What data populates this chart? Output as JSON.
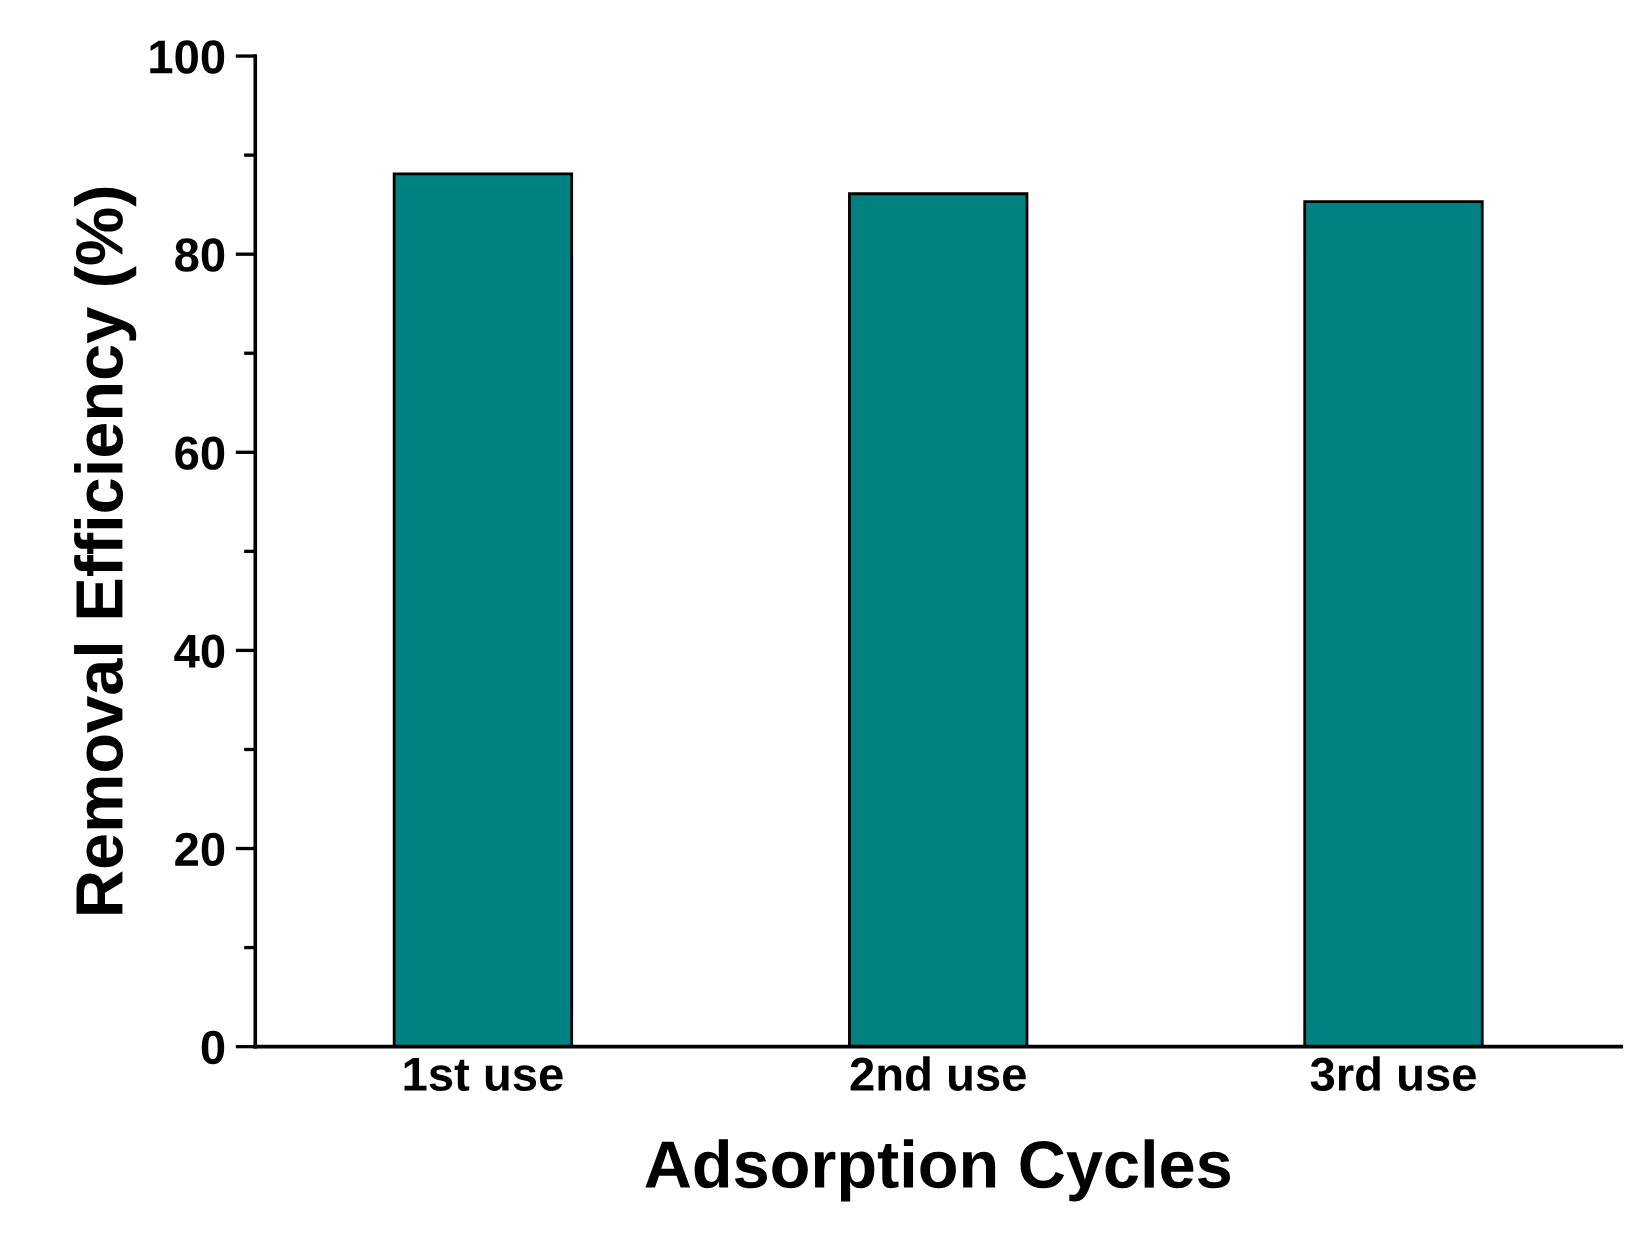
{
  "chart_data": {
    "type": "bar",
    "xlabel": "Adsorption Cycles",
    "ylabel": "Removal Efficiency (%)",
    "categories": [
      "1st use",
      "2nd use",
      "3rd use"
    ],
    "values": [
      88.1,
      86.1,
      85.3
    ],
    "color": "#008080",
    "ylim": [
      0,
      100
    ],
    "yticks": [
      0,
      20,
      40,
      60,
      80,
      100
    ],
    "grid": false,
    "legend": false
  }
}
